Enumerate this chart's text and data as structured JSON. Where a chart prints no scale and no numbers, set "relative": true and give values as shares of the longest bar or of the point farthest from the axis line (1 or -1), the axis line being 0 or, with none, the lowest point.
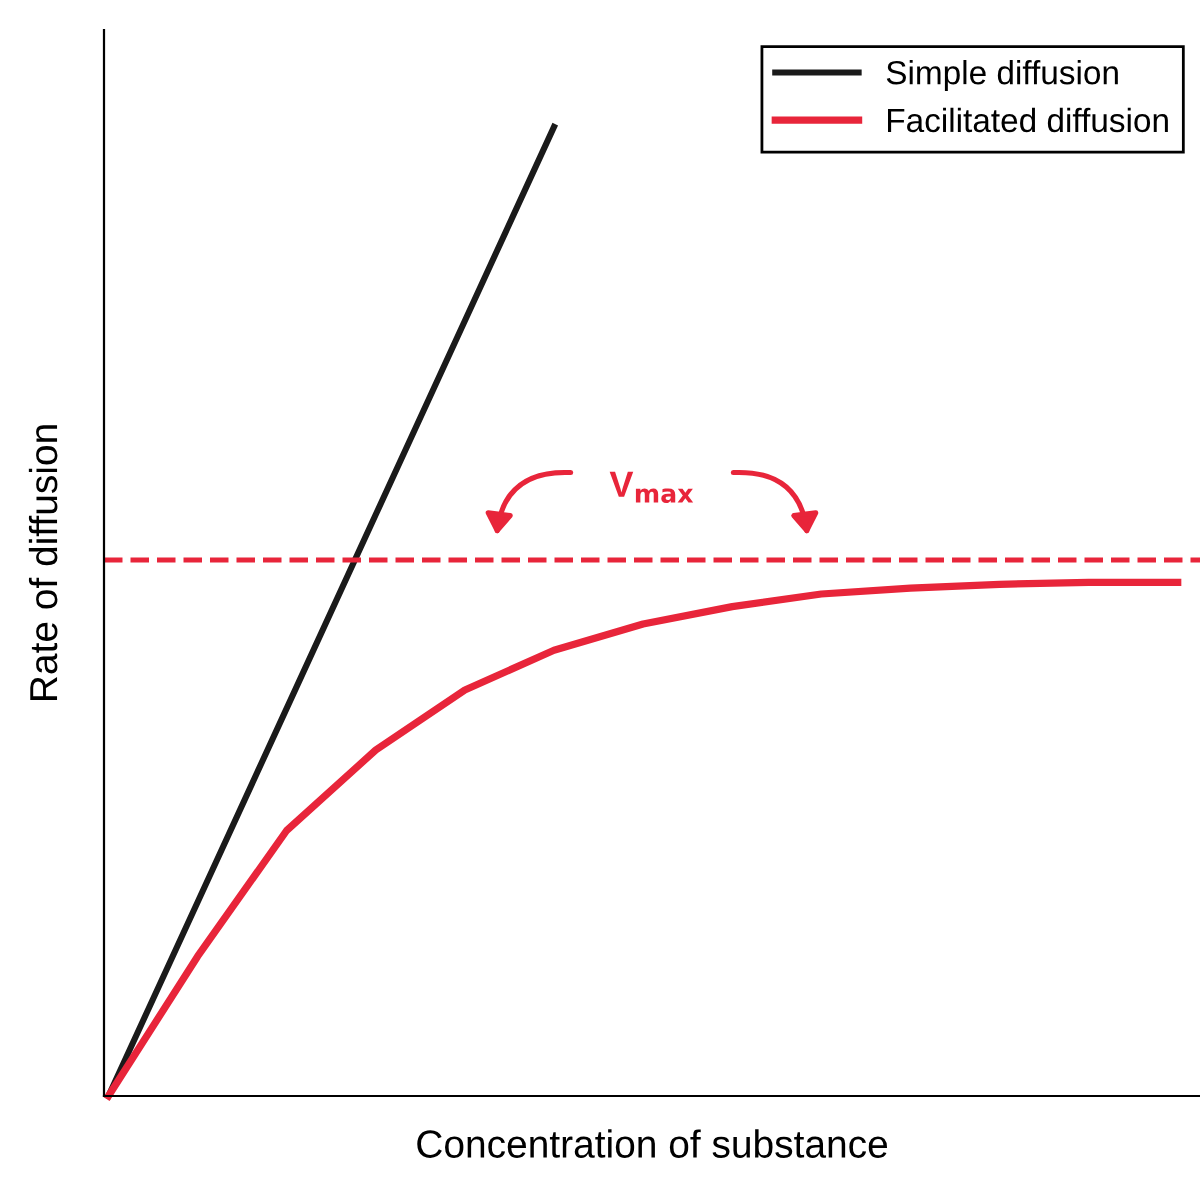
{
  "chart_data": {
    "type": "line",
    "relative": true,
    "xlabel": "Concentration of substance",
    "ylabel": "Rate of diffusion",
    "categories": [
      null,
      null,
      null,
      null,
      null,
      null,
      null,
      null,
      null,
      null,
      null,
      null,
      null
    ],
    "series": [
      {
        "name": "Simple diffusion",
        "color": "#1a1a1a",
        "values": [
          0,
          0.2,
          0.4,
          0.6,
          0.8,
          1.0,
          null,
          null,
          null,
          null,
          null,
          null,
          null
        ]
      },
      {
        "name": "Facilitated diffusion",
        "color": "#e8253a",
        "values": [
          0,
          0.144,
          0.274,
          0.357,
          0.419,
          0.46,
          0.487,
          0.505,
          0.518,
          0.524,
          0.528,
          0.53,
          0.53
        ]
      }
    ],
    "ref_lines": [
      {
        "axis": "y",
        "value": 0.553,
        "color": "#e8253a",
        "line_style": "dashed"
      }
    ],
    "annotations": [
      "V$_{max}$"
    ],
    "legend": "top right",
    "marker": "none",
    "line_style": "solid"
  }
}
